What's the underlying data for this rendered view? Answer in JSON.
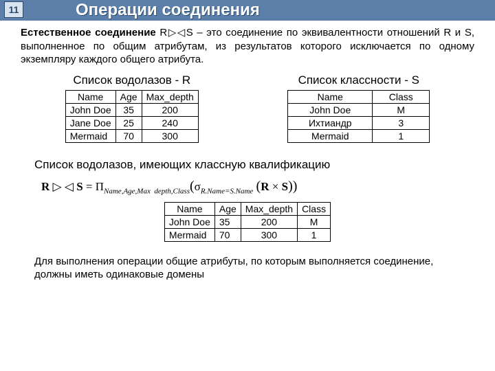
{
  "slide_number": "11",
  "title": "Операции соединения",
  "intro_bold": "Естественное соединение",
  "intro_rest": " R▷◁S – это соединение по эквивалентности отношений R и S, выполненное по общим атрибутам, из результатов которого исключается по одному экземпляру каждого общего атрибута.",
  "tableR": {
    "title": "Список водолазов - R",
    "headers": [
      "Name",
      "Age",
      "Max_depth"
    ],
    "rows": [
      [
        "John Doe",
        "35",
        "200"
      ],
      [
        "Jane Doe",
        "25",
        "240"
      ],
      [
        "Mermaid",
        "70",
        "300"
      ]
    ]
  },
  "tableS": {
    "title": "Список классности - S",
    "headers": [
      "Name",
      "Class"
    ],
    "rows": [
      [
        "John Doe",
        "М"
      ],
      [
        "Ихтиандр",
        "3"
      ],
      [
        "Mermaid",
        "1"
      ]
    ]
  },
  "result_title": "Список водолазов, имеющих классную квалификацию",
  "formula_html": "<b>R</b> ▷ ◁ <b>S</b> = Π<span class='sub'>Name,Age,Max&nbsp;&nbsp;depth,Class</span><span class='big'>(</span>σ<span class='sub'>R.Name=S.Name</span> <span class='big'>(</span><b>R</b> × <b>S</b><span class='big'>))</span>",
  "tableResult": {
    "headers": [
      "Name",
      "Age",
      "Max_depth",
      "Class"
    ],
    "rows": [
      [
        "John Doe",
        "35",
        "200",
        "М"
      ],
      [
        "Mermaid",
        "70",
        "300",
        "1"
      ]
    ]
  },
  "footer": "Для выполнения операции общие атрибуты, по которым выполняется соединение, должны иметь одинаковые домены"
}
